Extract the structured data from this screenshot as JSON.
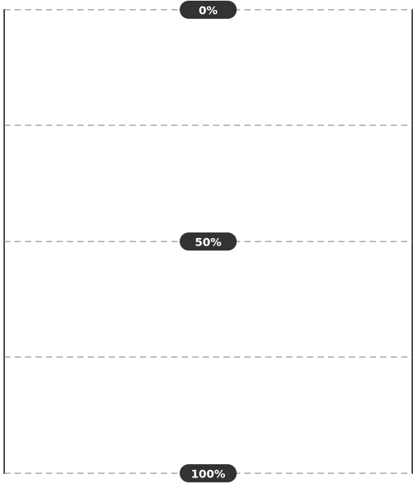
{
  "scale": {
    "labels": [
      "0%",
      "50%",
      "100%"
    ]
  }
}
